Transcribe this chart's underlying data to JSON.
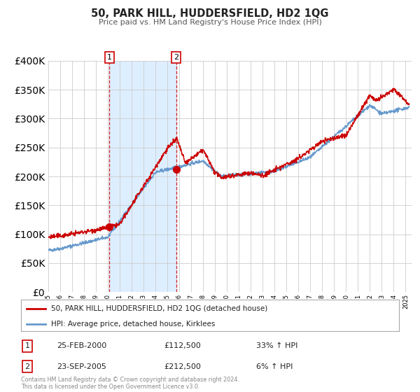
{
  "title": "50, PARK HILL, HUDDERSFIELD, HD2 1QG",
  "subtitle": "Price paid vs. HM Land Registry's House Price Index (HPI)",
  "legend_line1": "50, PARK HILL, HUDDERSFIELD, HD2 1QG (detached house)",
  "legend_line2": "HPI: Average price, detached house, Kirklees",
  "sale1_date": 2000.14,
  "sale1_price": 112500,
  "sale1_label": "1",
  "sale1_text": "25-FEB-2000",
  "sale1_amount": "£112,500",
  "sale1_hpi": "33% ↑ HPI",
  "sale2_date": 2005.73,
  "sale2_price": 212500,
  "sale2_label": "2",
  "sale2_text": "23-SEP-2005",
  "sale2_amount": "£212,500",
  "sale2_hpi": "6% ↑ HPI",
  "red_color": "#cc0000",
  "blue_color": "#6699cc",
  "shade_color": "#ddeeff",
  "grid_color": "#cccccc",
  "background_color": "#ffffff",
  "ylim": [
    0,
    400000
  ],
  "xlim_start": 1995.0,
  "xlim_end": 2025.5,
  "footer": "Contains HM Land Registry data © Crown copyright and database right 2024.\nThis data is licensed under the Open Government Licence v3.0."
}
